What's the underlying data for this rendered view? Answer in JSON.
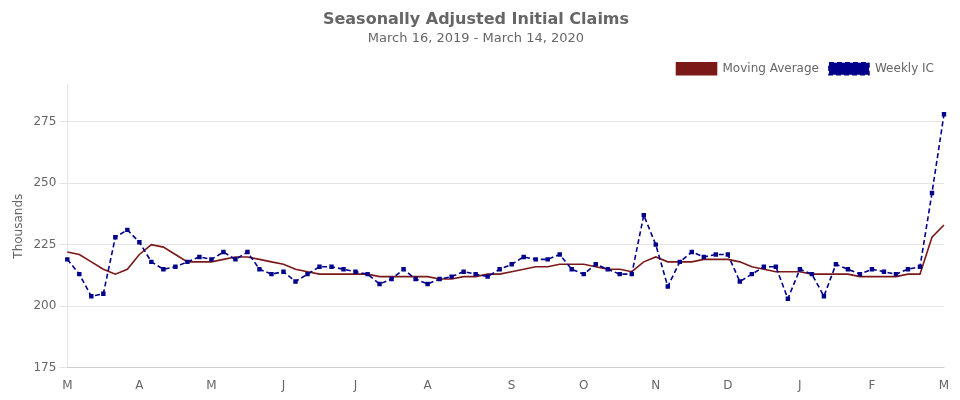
{
  "chart_data": {
    "type": "line",
    "title": "Seasonally Adjusted Initial Claims",
    "subtitle": "March 16, 2019 - March 14, 2020",
    "ylabel": "Thousands",
    "categories": [
      "M",
      null,
      null,
      null,
      null,
      null,
      "A",
      null,
      null,
      null,
      null,
      null,
      "M",
      null,
      null,
      null,
      null,
      null,
      "J",
      null,
      null,
      null,
      null,
      null,
      "J",
      null,
      null,
      null,
      null,
      null,
      "A",
      null,
      null,
      null,
      null,
      null,
      null,
      "S",
      null,
      null,
      null,
      null,
      null,
      "O",
      null,
      null,
      null,
      null,
      null,
      "N",
      null,
      null,
      null,
      null,
      null,
      "D",
      null,
      null,
      null,
      null,
      null,
      "J",
      null,
      null,
      null,
      null,
      null,
      "F",
      null,
      null,
      null,
      null,
      null,
      "M"
    ],
    "series": [
      {
        "name": "Weekly IC",
        "color": "#00008B",
        "marker": "square",
        "line_style": "dashed",
        "values": [
          219,
          213,
          204,
          205,
          228,
          231,
          226,
          218,
          215,
          216,
          218,
          220,
          219,
          222,
          219,
          222,
          215,
          213,
          214,
          210,
          213,
          216,
          216,
          215,
          214,
          213,
          209,
          211,
          215,
          211,
          209,
          211,
          212,
          214,
          213,
          212,
          215,
          217,
          220,
          219,
          219,
          221,
          215,
          213,
          217,
          215,
          213,
          213,
          237,
          225,
          208,
          218,
          222,
          220,
          221,
          221,
          210,
          213,
          216,
          216,
          203,
          215,
          213,
          204,
          217,
          215,
          213,
          215,
          214,
          213,
          215,
          216,
          246,
          278
        ]
      },
      {
        "name": "Moving Average",
        "color": "#7B1818",
        "marker": "none",
        "line_style": "solid",
        "values": [
          222,
          221,
          218,
          215,
          213,
          215,
          221,
          225,
          224,
          221,
          218,
          218,
          218,
          219,
          220,
          220,
          219,
          218,
          217,
          215,
          214,
          213,
          213,
          213,
          213,
          213,
          212,
          212,
          212,
          212,
          212,
          211,
          211,
          212,
          212,
          213,
          213,
          214,
          215,
          216,
          216,
          217,
          217,
          217,
          216,
          215,
          215,
          214,
          218,
          220,
          218,
          218,
          218,
          219,
          219,
          219,
          218,
          216,
          215,
          214,
          214,
          214,
          213,
          213,
          213,
          213,
          212,
          212,
          212,
          212,
          213,
          213,
          228,
          233
        ]
      }
    ],
    "ylim": [
      175,
      290
    ],
    "yticks": [
      175,
      200,
      225,
      250,
      275
    ],
    "grid": "y",
    "legend": "upper right"
  }
}
